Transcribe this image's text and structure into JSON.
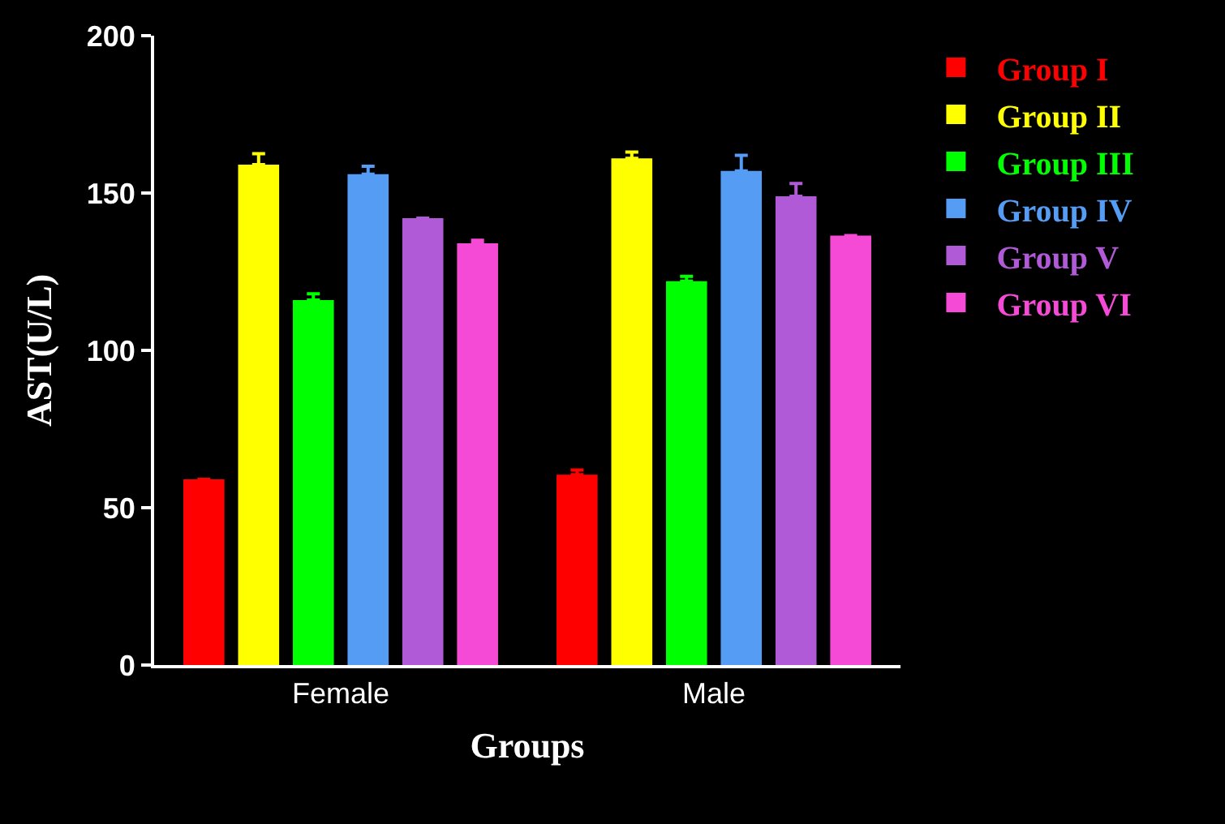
{
  "chart_data": {
    "type": "bar",
    "xlabel": "Groups",
    "ylabel": "AST(U/L)",
    "categories": [
      "Female",
      "Male"
    ],
    "series": [
      {
        "name": "Group I",
        "color": "#ff0000",
        "values": [
          59,
          60.5
        ],
        "errors": [
          null,
          [
            60.5,
            62
          ]
        ]
      },
      {
        "name": "Group II",
        "color": "#ffff00",
        "values": [
          159,
          161
        ],
        "errors": [
          [
            159,
            162.5
          ],
          [
            161,
            163
          ]
        ]
      },
      {
        "name": "Group III",
        "color": "#00ff00",
        "values": [
          116,
          122
        ],
        "errors": [
          [
            116,
            118
          ],
          [
            122,
            123.5
          ]
        ]
      },
      {
        "name": "Group IV",
        "color": "#559cf5",
        "values": [
          156,
          157
        ],
        "errors": [
          [
            156,
            158.5
          ],
          [
            157,
            162
          ]
        ]
      },
      {
        "name": "Group V",
        "color": "#b05ad8",
        "values": [
          142,
          149
        ],
        "errors": [
          null,
          [
            149,
            153
          ]
        ]
      },
      {
        "name": "Group VI",
        "color": "#f54ad6",
        "values": [
          134,
          136.5
        ],
        "errors": [
          [
            134,
            135
          ],
          null
        ]
      }
    ],
    "ylim": [
      0,
      200
    ],
    "yticks": [
      0,
      50,
      100,
      150,
      200
    ],
    "grid": false,
    "legend": "right"
  }
}
